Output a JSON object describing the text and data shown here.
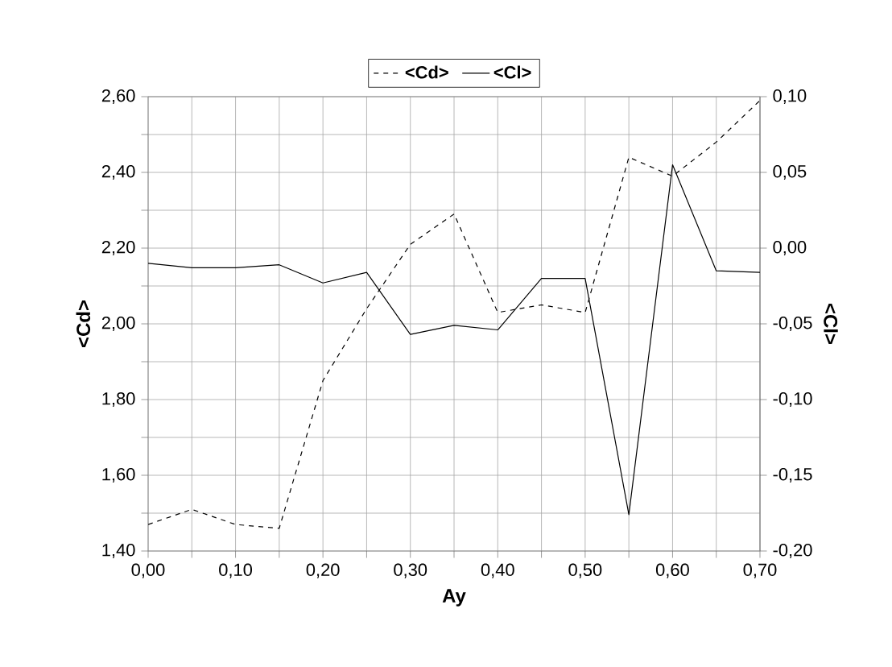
{
  "chart_data": {
    "type": "line",
    "xlabel": "Ay",
    "ylabel": "<Cd>",
    "y2label": "<Cl>",
    "x": [
      0.0,
      0.05,
      0.1,
      0.15,
      0.2,
      0.25,
      0.3,
      0.35,
      0.4,
      0.45,
      0.5,
      0.55,
      0.6,
      0.65,
      0.7
    ],
    "series": [
      {
        "name": "<Cd>",
        "color": "#000000",
        "line_style": "dashed",
        "values": [
          1.47,
          1.51,
          1.47,
          1.46,
          1.85,
          2.04,
          2.21,
          2.29,
          2.03,
          2.05,
          2.03,
          2.44,
          2.39,
          2.48,
          2.59
        ]
      },
      {
        "name": "<Cl>",
        "color": "#000000",
        "line_style": "solid",
        "axis": "y2",
        "values": [
          -0.01,
          -0.013,
          -0.013,
          -0.011,
          -0.023,
          -0.016,
          -0.057,
          -0.051,
          -0.054,
          -0.02,
          -0.02,
          -0.176,
          0.055,
          -0.015,
          -0.016
        ]
      }
    ],
    "xlim": [
      0,
      0.7
    ],
    "xticks": [
      {
        "value": 0,
        "label": "0,00"
      },
      {
        "value": 0.05,
        "label": null
      },
      {
        "value": 0.1,
        "label": "0,10"
      },
      {
        "value": 0.15,
        "label": null
      },
      {
        "value": 0.2,
        "label": "0,20"
      },
      {
        "value": 0.25,
        "label": null
      },
      {
        "value": 0.3,
        "label": "0,30"
      },
      {
        "value": 0.35,
        "label": null
      },
      {
        "value": 0.4,
        "label": "0,40"
      },
      {
        "value": 0.45,
        "label": null
      },
      {
        "value": 0.5,
        "label": "0,50"
      },
      {
        "value": 0.55,
        "label": null
      },
      {
        "value": 0.6,
        "label": "0,60"
      },
      {
        "value": 0.65,
        "label": null
      },
      {
        "value": 0.7,
        "label": "0,70"
      }
    ],
    "ylim": [
      1.4,
      2.6
    ],
    "yticks": [
      {
        "value": 1.4,
        "label": "1,40"
      },
      {
        "value": 1.5,
        "label": null
      },
      {
        "value": 1.6,
        "label": "1,60"
      },
      {
        "value": 1.7,
        "label": null
      },
      {
        "value": 1.8,
        "label": "1,80"
      },
      {
        "value": 1.9,
        "label": null
      },
      {
        "value": 2.0,
        "label": "2,00"
      },
      {
        "value": 2.1,
        "label": null
      },
      {
        "value": 2.2,
        "label": "2,20"
      },
      {
        "value": 2.3,
        "label": null
      },
      {
        "value": 2.4,
        "label": "2,40"
      },
      {
        "value": 2.5,
        "label": null
      },
      {
        "value": 2.6,
        "label": "2,60"
      }
    ],
    "y2lim": [
      -0.2,
      0.1
    ],
    "y2ticks": [
      {
        "value": -0.2,
        "label": "-0,20"
      },
      {
        "value": -0.15,
        "label": "-0,15"
      },
      {
        "value": -0.1,
        "label": "-0,10"
      },
      {
        "value": -0.05,
        "label": "-0,05"
      },
      {
        "value": 0,
        "label": "0,00"
      },
      {
        "value": 0.05,
        "label": "0,05"
      },
      {
        "value": 0.1,
        "label": "0,10"
      }
    ],
    "grid": true,
    "legend": "top",
    "marker": "none"
  }
}
